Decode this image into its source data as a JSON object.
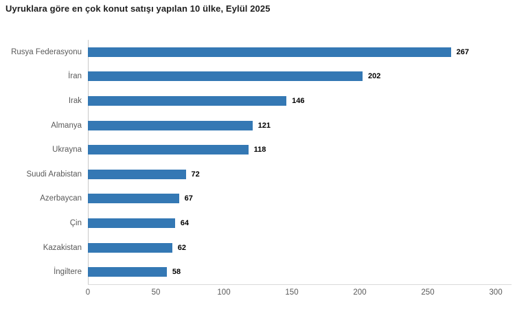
{
  "title": "Uyruklara göre en çok konut satışı yapılan 10 ülke, Eylül 2025",
  "colors": {
    "bar": "#3478b4",
    "title_text": "#1e1e1e",
    "category_text": "#595959",
    "value_text": "#000000",
    "y_axis_line": "#c9c9c9",
    "x_axis_line": "#d9d9d9",
    "tick_text": "#595959",
    "background": "#ffffff"
  },
  "chart_data": {
    "type": "bar",
    "orientation": "horizontal",
    "title": "Uyruklara göre en çok konut satışı yapılan 10 ülke, Eylül 2025",
    "categories": [
      "Rusya Federasyonu",
      "İran",
      "Irak",
      "Almanya",
      "Ukrayna",
      "Suudi Arabistan",
      "Azerbaycan",
      "Çin",
      "Kazakistan",
      "İngiltere"
    ],
    "values": [
      267,
      202,
      146,
      121,
      118,
      72,
      67,
      64,
      62,
      58
    ],
    "xlabel": "",
    "ylabel": "",
    "xlim": [
      0,
      300
    ],
    "xticks": [
      0,
      50,
      100,
      150,
      200,
      250,
      300
    ],
    "grid": false,
    "legend": null,
    "data_labels": true
  }
}
